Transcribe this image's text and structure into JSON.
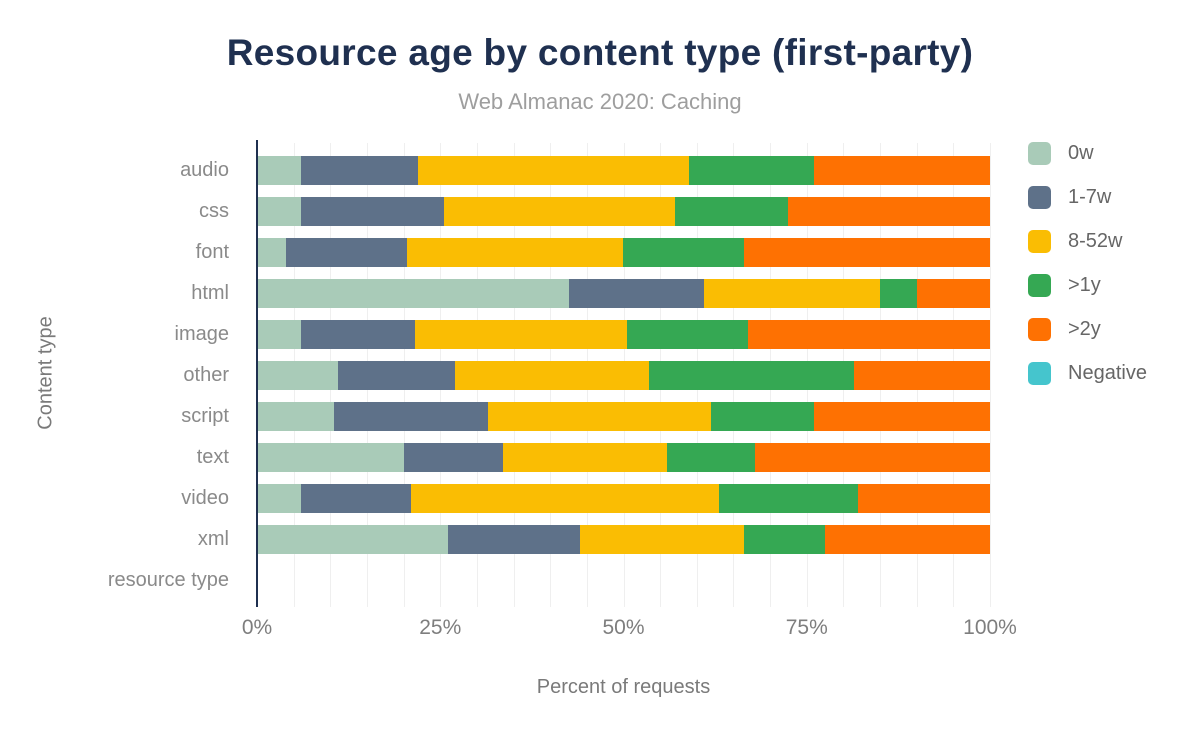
{
  "header": {
    "title": "Resource age by content type (first-party)",
    "subtitle": "Web Almanac 2020: Caching"
  },
  "axes": {
    "x_title": "Percent of requests",
    "y_title": "Content type",
    "x_tick_labels": [
      "0%",
      "25%",
      "50%",
      "75%",
      "100%"
    ]
  },
  "legend": {
    "items": [
      {
        "label": "0w",
        "color": "#a9cbb8"
      },
      {
        "label": "1-7w",
        "color": "#5e7189"
      },
      {
        "label": "8-52w",
        "color": "#fabd03"
      },
      {
        "label": ">1y",
        "color": "#35a853"
      },
      {
        "label": ">2y",
        "color": "#fe7102"
      },
      {
        "label": "Negative",
        "color": "#45c5cd"
      }
    ]
  },
  "chart_data": {
    "type": "bar",
    "orientation": "horizontal",
    "stacked": true,
    "title": "Resource age by content type (first-party)",
    "subtitle": "Web Almanac 2020: Caching",
    "xlabel": "Percent of requests",
    "ylabel": "Content type",
    "xlim": [
      0,
      100
    ],
    "x_tick_labels": [
      "0%",
      "25%",
      "50%",
      "75%",
      "100%"
    ],
    "grid": {
      "x_interval": 5,
      "gridlines": "on"
    },
    "legend_position": "right",
    "categories": [
      "audio",
      "css",
      "font",
      "html",
      "image",
      "other",
      "script",
      "text",
      "video",
      "xml",
      "resource type"
    ],
    "series": [
      {
        "name": "0w",
        "color": "#a9cbb8",
        "values": [
          6,
          6,
          4,
          42.5,
          6,
          11,
          10.5,
          20,
          6,
          26,
          0
        ]
      },
      {
        "name": "1-7w",
        "color": "#5e7189",
        "values": [
          16,
          19.5,
          16.5,
          18.5,
          15.5,
          16,
          21,
          13.5,
          15,
          18,
          0
        ]
      },
      {
        "name": "8-52w",
        "color": "#fabd03",
        "values": [
          37,
          31.5,
          29.5,
          24,
          29,
          26.5,
          30.5,
          22.5,
          42,
          22.5,
          0
        ]
      },
      {
        "name": ">1y",
        "color": "#35a853",
        "values": [
          17,
          15.5,
          16.5,
          5,
          16.5,
          28,
          14,
          12,
          19,
          11,
          0
        ]
      },
      {
        "name": ">2y",
        "color": "#fe7102",
        "values": [
          24,
          27.5,
          33.5,
          10,
          33,
          18.5,
          24,
          32,
          18,
          22.5,
          0
        ]
      },
      {
        "name": "Negative",
        "color": "#45c5cd",
        "values": [
          0,
          0,
          0,
          0,
          0,
          0,
          0,
          0,
          0,
          0,
          0
        ]
      }
    ]
  }
}
